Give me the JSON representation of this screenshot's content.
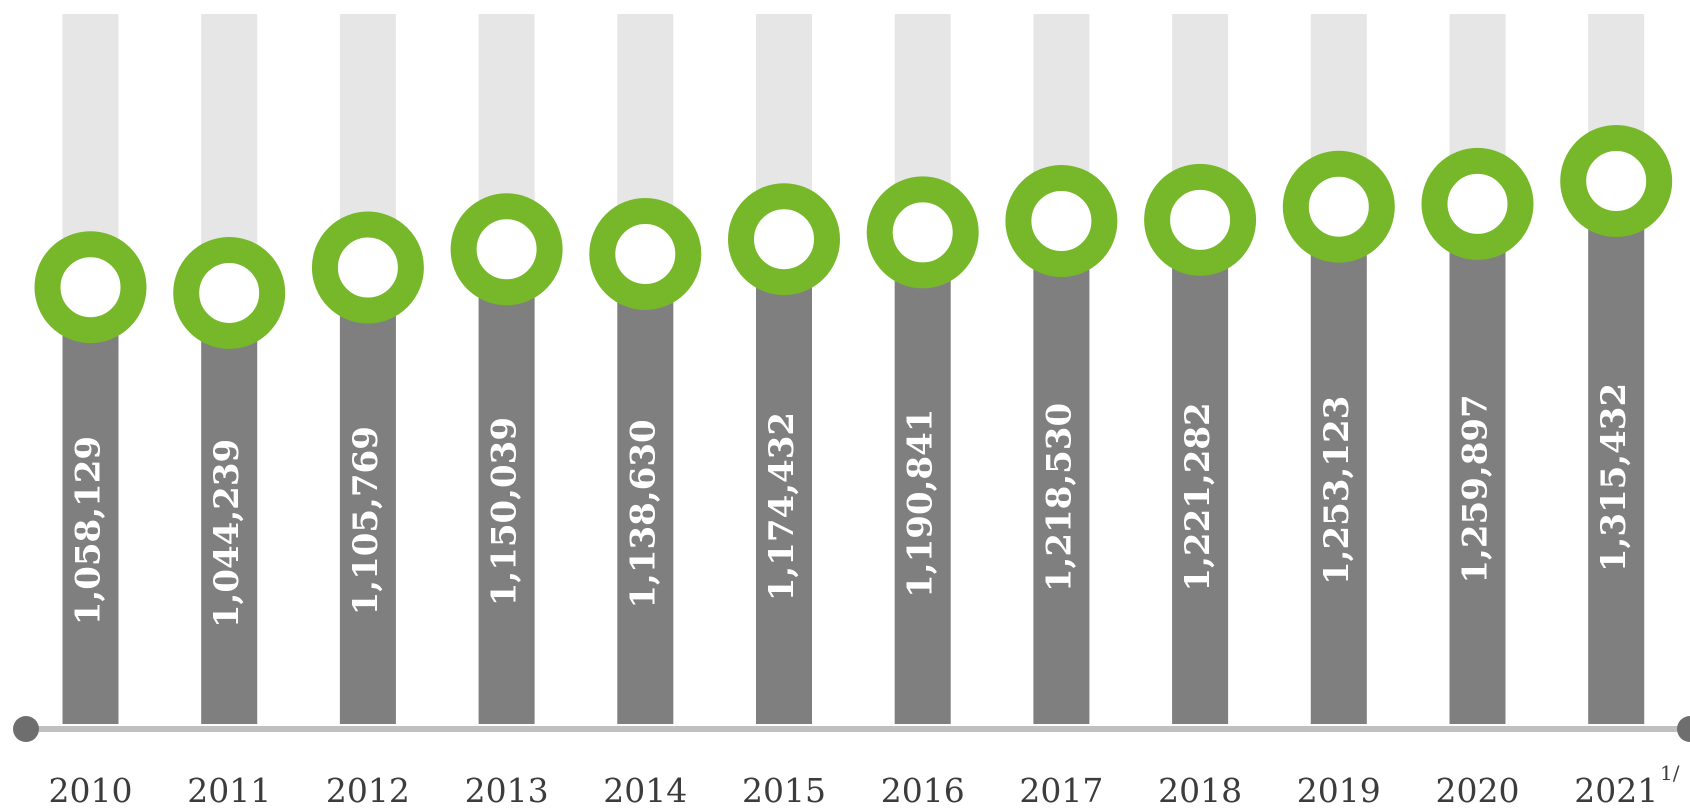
{
  "chart_data": {
    "type": "bar",
    "categories": [
      "2010",
      "2011",
      "2012",
      "2013",
      "2014",
      "2015",
      "2016",
      "2017",
      "2018",
      "2019",
      "2020",
      "2021"
    ],
    "values": [
      1058129,
      1044239,
      1105769,
      1150039,
      1138630,
      1174432,
      1190841,
      1218530,
      1221282,
      1253123,
      1259897,
      1315432
    ],
    "value_labels": [
      "1,058,129",
      "1,044,239",
      "1,105,769",
      "1,150,039",
      "1,138,630",
      "1,174,432",
      "1,190,841",
      "1,218,530",
      "1,221,282",
      "1,253,123",
      "1,259,897",
      "1,315,432"
    ],
    "ylim": [
      0,
      1720000
    ],
    "color": "#7f7f7f",
    "marker_color": "#76b82a",
    "track_color": "#e6e6e6",
    "footnote_marker": "1/"
  }
}
